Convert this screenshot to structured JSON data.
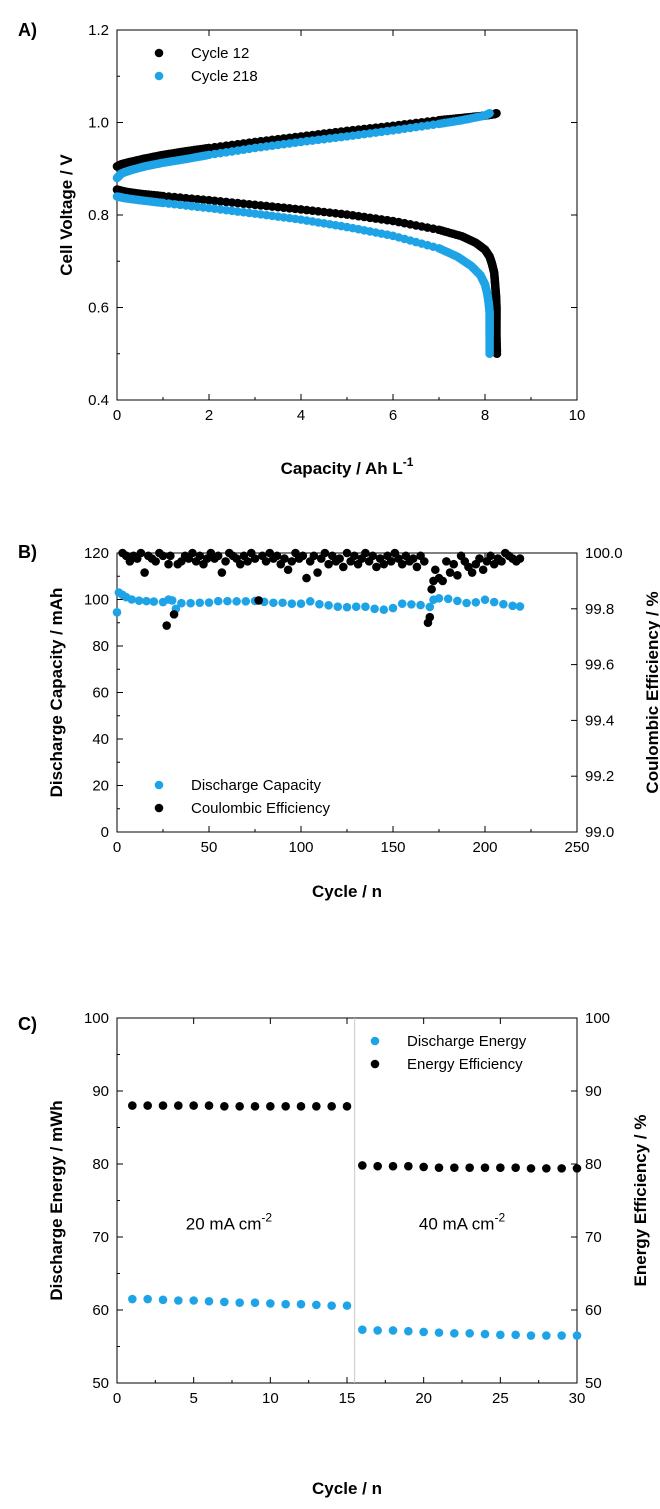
{
  "colors": {
    "black": "#000000",
    "blue": "#1ea4e6"
  },
  "chart_data": [
    {
      "panel": "A)",
      "type": "scatter",
      "xlabel": "Capacity / Ah L",
      "xlabel_sup": "-1",
      "ylabel": "Cell Voltage / V",
      "xlim": [
        0,
        10
      ],
      "ylim": [
        0.4,
        1.2
      ],
      "xticks": [
        "0",
        "2",
        "4",
        "6",
        "8",
        "10"
      ],
      "yticks": [
        "0.4",
        "0.6",
        "0.8",
        "1.0",
        "1.2"
      ],
      "legend_position": "top-left",
      "series": [
        {
          "name": "Cycle 12",
          "color": "#000000",
          "charge": {
            "x": [
              0,
              0.1,
              0.3,
              0.6,
              1,
              1.5,
              2,
              3,
              4,
              5,
              6,
              7,
              7.5,
              8,
              8.2,
              8.25
            ],
            "y": [
              0.905,
              0.91,
              0.915,
              0.922,
              0.93,
              0.938,
              0.945,
              0.958,
              0.97,
              0.982,
              0.993,
              1.005,
              1.01,
              1.015,
              1.018,
              1.02
            ]
          },
          "discharge": {
            "x": [
              0,
              0.2,
              0.5,
              1,
              2,
              3,
              4,
              5,
              6,
              7,
              7.5,
              7.8,
              8,
              8.1,
              8.15,
              8.2,
              8.22,
              8.24,
              8.25,
              8.25,
              8.25,
              8.26
            ],
            "y": [
              0.855,
              0.85,
              0.846,
              0.841,
              0.832,
              0.822,
              0.812,
              0.801,
              0.787,
              0.768,
              0.754,
              0.74,
              0.725,
              0.71,
              0.695,
              0.675,
              0.65,
              0.625,
              0.6,
              0.575,
              0.54,
              0.5
            ]
          }
        },
        {
          "name": "Cycle 218",
          "color": "#1ea4e6",
          "charge": {
            "x": [
              0,
              0.1,
              0.3,
              0.6,
              1,
              1.5,
              2,
              3,
              4,
              5,
              6,
              7,
              7.5,
              8,
              8.1
            ],
            "y": [
              0.88,
              0.89,
              0.897,
              0.905,
              0.913,
              0.921,
              0.93,
              0.945,
              0.958,
              0.97,
              0.983,
              0.997,
              1.005,
              1.015,
              1.02
            ]
          },
          "discharge": {
            "x": [
              0,
              0.2,
              0.5,
              1,
              2,
              3,
              4,
              5,
              6,
              7,
              7.4,
              7.7,
              7.9,
              8,
              8.05,
              8.08,
              8.1,
              8.1,
              8.1,
              8.1
            ],
            "y": [
              0.84,
              0.836,
              0.832,
              0.826,
              0.815,
              0.803,
              0.79,
              0.774,
              0.755,
              0.728,
              0.71,
              0.69,
              0.67,
              0.65,
              0.63,
              0.61,
              0.59,
              0.565,
              0.54,
              0.5
            ]
          }
        }
      ]
    },
    {
      "panel": "B)",
      "type": "scatter",
      "xlabel": "Cycle / n",
      "ylabel": "Discharge Capacity / mAh",
      "y2label": "Coulombic Efficiency / %",
      "xlim": [
        0,
        250
      ],
      "ylim": [
        0,
        120
      ],
      "y2lim": [
        99.0,
        100.0
      ],
      "xticks": [
        "0",
        "50",
        "100",
        "150",
        "200",
        "250"
      ],
      "yticks": [
        "0",
        "20",
        "40",
        "60",
        "80",
        "100",
        "120"
      ],
      "y2ticks": [
        "99.0",
        "99.2",
        "99.4",
        "99.6",
        "99.8",
        "100.0"
      ],
      "legend_position": "bottom-left",
      "series": [
        {
          "name": "Discharge Capacity",
          "color": "#1ea4e6",
          "axis": "left",
          "x": [
            0,
            1,
            3,
            5,
            8,
            12,
            16,
            20,
            25,
            28,
            30,
            32,
            35,
            40,
            45,
            50,
            55,
            60,
            65,
            70,
            75,
            80,
            85,
            90,
            95,
            100,
            105,
            110,
            115,
            120,
            125,
            130,
            135,
            140,
            145,
            150,
            155,
            160,
            165,
            170,
            172,
            175,
            180,
            185,
            190,
            195,
            200,
            205,
            210,
            215,
            219
          ],
          "y": [
            94.5,
            103,
            102,
            101,
            100,
            99.5,
            99.3,
            99.1,
            98.9,
            100,
            99.6,
            96,
            98.4,
            98.4,
            98.6,
            98.7,
            99.3,
            99.3,
            99.2,
            99.2,
            99.4,
            99.0,
            98.6,
            98.6,
            98.2,
            98.2,
            99.2,
            98.0,
            97.5,
            96.9,
            96.7,
            96.9,
            96.9,
            96.0,
            95.6,
            96.3,
            98.2,
            97.9,
            97.6,
            96.8,
            99.9,
            100.5,
            100.3,
            99.4,
            98.5,
            98.8,
            99.9,
            98.9,
            98.0,
            97.3,
            97.0
          ]
        },
        {
          "name": "Coulombic Efficiency",
          "color": "#000000",
          "axis": "right",
          "x": [
            3,
            5,
            7,
            9,
            11,
            13,
            15,
            17,
            19,
            21,
            23,
            25,
            27,
            28,
            29,
            31,
            33,
            35,
            37,
            39,
            41,
            43,
            45,
            47,
            49,
            51,
            53,
            55,
            57,
            59,
            61,
            63,
            65,
            67,
            69,
            71,
            73,
            75,
            77,
            79,
            81,
            83,
            85,
            87,
            89,
            91,
            93,
            95,
            97,
            99,
            101,
            103,
            105,
            107,
            109,
            111,
            113,
            115,
            117,
            119,
            121,
            123,
            125,
            127,
            129,
            131,
            133,
            135,
            137,
            139,
            141,
            143,
            145,
            147,
            149,
            151,
            153,
            155,
            157,
            159,
            161,
            163,
            165,
            167,
            169,
            170,
            171,
            172,
            173,
            175,
            177,
            179,
            181,
            183,
            185,
            187,
            189,
            191,
            193,
            195,
            197,
            199,
            201,
            203,
            205,
            207,
            209,
            211,
            213,
            215,
            217,
            219
          ],
          "y": [
            100,
            99.99,
            99.97,
            99.99,
            99.98,
            100,
            99.93,
            99.99,
            99.98,
            99.97,
            100,
            99.99,
            99.74,
            99.96,
            99.99,
            99.78,
            99.96,
            99.97,
            99.99,
            99.98,
            100,
            99.97,
            99.99,
            99.96,
            99.98,
            100,
            99.98,
            99.99,
            99.93,
            99.97,
            100,
            99.99,
            99.98,
            99.96,
            99.99,
            99.97,
            100,
            99.98,
            99.83,
            99.99,
            99.97,
            100,
            99.98,
            99.99,
            99.96,
            99.98,
            99.94,
            99.97,
            100,
            99.98,
            99.99,
            99.91,
            99.97,
            99.99,
            99.93,
            99.98,
            100,
            99.96,
            99.99,
            99.97,
            99.98,
            99.95,
            100,
            99.97,
            99.99,
            99.96,
            99.98,
            100,
            99.97,
            99.99,
            99.95,
            99.98,
            99.96,
            99.99,
            99.97,
            100,
            99.98,
            99.96,
            99.99,
            99.97,
            99.98,
            99.95,
            99.99,
            99.97,
            99.75,
            99.77,
            99.87,
            99.9,
            99.94,
            99.91,
            99.9,
            99.97,
            99.93,
            99.96,
            99.92,
            99.99,
            99.97,
            99.95,
            99.93,
            99.96,
            99.98,
            99.94,
            99.97,
            99.99,
            99.96,
            99.98,
            99.97,
            100,
            99.99,
            99.98,
            99.97,
            99.98
          ]
        }
      ]
    },
    {
      "panel": "C)",
      "type": "scatter",
      "xlabel": "Cycle / n",
      "ylabel": "Discharge Energy / mWh",
      "y2label": "Energy Efficiency / %",
      "xlim": [
        0,
        30
      ],
      "ylim": [
        50,
        100
      ],
      "y2lim": [
        50,
        100
      ],
      "xticks": [
        "0",
        "5",
        "10",
        "15",
        "20",
        "25",
        "30"
      ],
      "yticks": [
        "50",
        "60",
        "70",
        "80",
        "90",
        "100"
      ],
      "y2ticks": [
        "50",
        "60",
        "70",
        "80",
        "90",
        "100"
      ],
      "legend_position": "top-right",
      "divider_x": 15.5,
      "annotations": [
        {
          "text": "20 mA cm",
          "sup": "-2",
          "x": 7.3,
          "y": 71
        },
        {
          "text": "40 mA cm",
          "sup": "-2",
          "x": 22.5,
          "y": 71
        }
      ],
      "series": [
        {
          "name": "Discharge Energy",
          "color": "#1ea4e6",
          "axis": "left",
          "x": [
            1,
            2,
            3,
            4,
            5,
            6,
            7,
            8,
            9,
            10,
            11,
            12,
            13,
            14,
            15,
            16,
            17,
            18,
            19,
            20,
            21,
            22,
            23,
            24,
            25,
            26,
            27,
            28,
            29,
            30
          ],
          "y": [
            61.5,
            61.5,
            61.4,
            61.3,
            61.3,
            61.2,
            61.1,
            61.0,
            61.0,
            60.9,
            60.8,
            60.8,
            60.7,
            60.6,
            60.6,
            57.3,
            57.2,
            57.2,
            57.1,
            57.0,
            56.9,
            56.8,
            56.8,
            56.7,
            56.6,
            56.6,
            56.5,
            56.5,
            56.5,
            56.5
          ]
        },
        {
          "name": "Energy Efficiency",
          "color": "#000000",
          "axis": "right",
          "x": [
            1,
            2,
            3,
            4,
            5,
            6,
            7,
            8,
            9,
            10,
            11,
            12,
            13,
            14,
            15,
            16,
            17,
            18,
            19,
            20,
            21,
            22,
            23,
            24,
            25,
            26,
            27,
            28,
            29,
            30
          ],
          "y": [
            88.0,
            88.0,
            88.0,
            88.0,
            88.0,
            88.0,
            87.9,
            87.9,
            87.9,
            87.9,
            87.9,
            87.9,
            87.9,
            87.9,
            87.9,
            79.8,
            79.7,
            79.7,
            79.7,
            79.6,
            79.5,
            79.5,
            79.5,
            79.5,
            79.5,
            79.5,
            79.4,
            79.4,
            79.4,
            79.4
          ]
        }
      ]
    }
  ]
}
